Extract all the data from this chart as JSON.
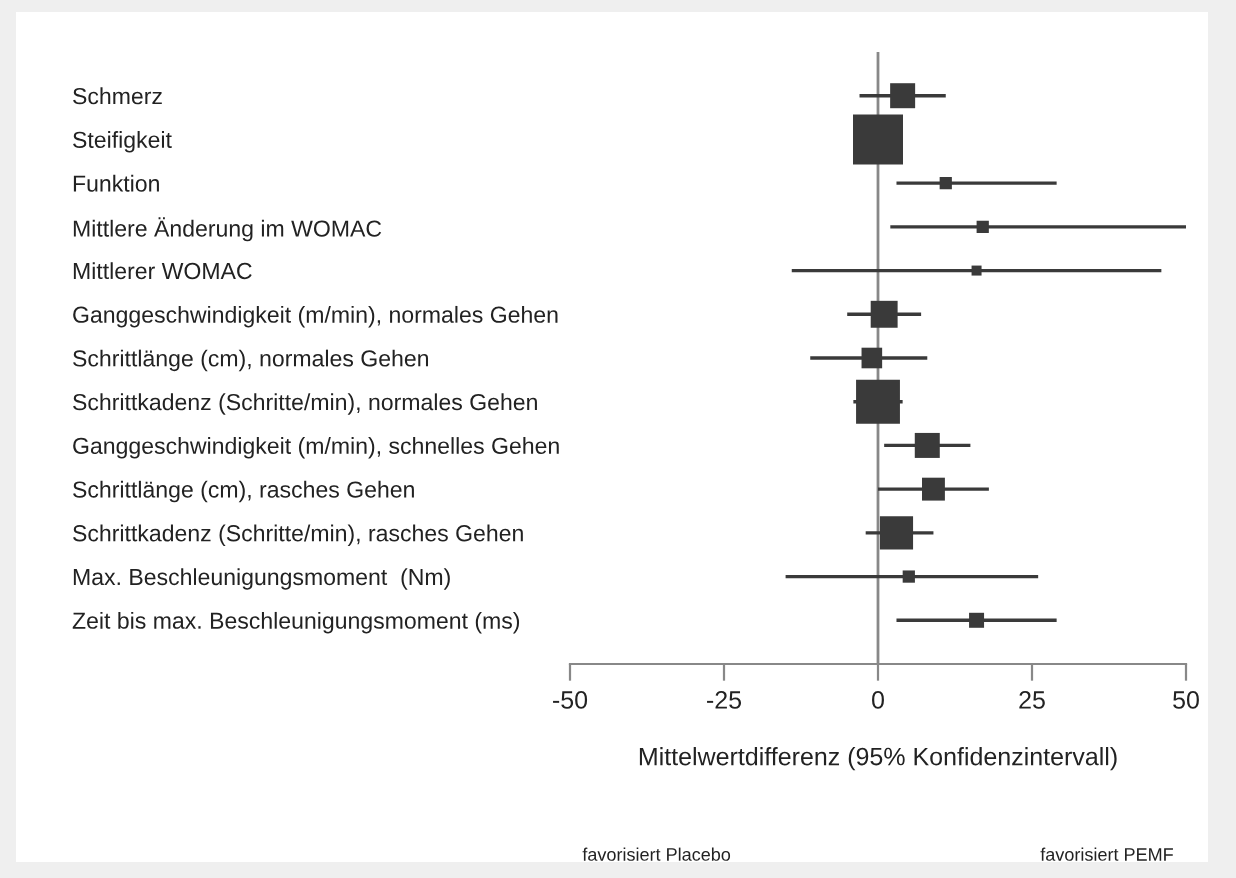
{
  "chart_data": {
    "type": "scatter",
    "orientation": "horizontal",
    "marker": "square",
    "color": "#3a3a3a",
    "categories": [
      "Schmerz",
      "Steifigkeit",
      "Funktion",
      "Mittlere Änderung im WOMAC",
      "Mittlerer WOMAC",
      "Ganggeschwindigkeit (m/min), normales Gehen",
      "Schrittlänge (cm), normales Gehen",
      "Schrittkadenz (Schritte/min), normales Gehen",
      "Ganggeschwindigkeit (m/min), schnelles Gehen",
      "Schrittlänge (cm), rasches Gehen",
      "Schrittkadenz (Schritte/min), rasches Gehen",
      "Max. Beschleunigungsmoment  (Nm)",
      "Zeit bis max. Beschleunigungsmoment (ms)"
    ],
    "values": [
      4,
      0,
      11,
      17,
      16,
      1,
      -1,
      0,
      8,
      9,
      3,
      5,
      16
    ],
    "errors": [
      [
        -3,
        11
      ],
      null,
      [
        3,
        29
      ],
      [
        2,
        50
      ],
      [
        -14,
        46
      ],
      [
        -5,
        7
      ],
      [
        -11,
        8
      ],
      [
        -4,
        4
      ],
      [
        1,
        15
      ],
      [
        0,
        18
      ],
      [
        -2,
        9
      ],
      [
        -15,
        26
      ],
      [
        3,
        29
      ]
    ],
    "sizes": [
      0.25,
      1,
      0.06,
      0.06,
      0.04,
      0.29,
      0.17,
      0.77,
      0.25,
      0.21,
      0.44,
      0.06,
      0.09
    ],
    "xlim": [
      -50,
      50
    ],
    "xticks": [
      -50,
      -25,
      0,
      25,
      50
    ],
    "xlabel": "Mittelwertdifferenz (95% Konfidenzintervall)",
    "ref_lines": [
      {
        "axis": "x",
        "value": 0,
        "color": "#888888"
      }
    ],
    "annotations": [
      "favorisiert Placebo",
      "favorisiert PEMF"
    ],
    "grid": false
  }
}
